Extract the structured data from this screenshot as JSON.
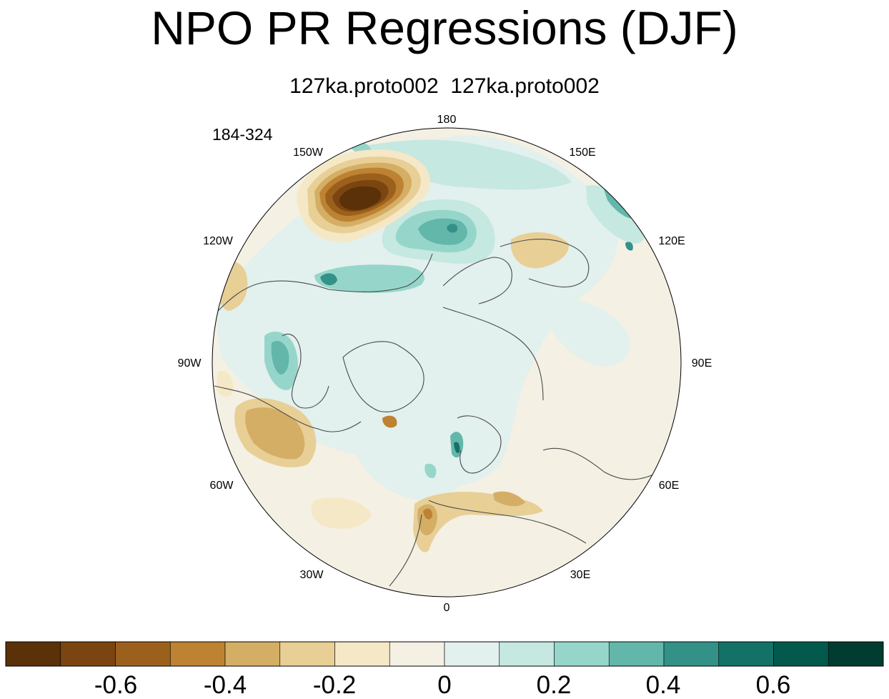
{
  "title": "NPO PR Regressions (DJF)",
  "subtitle": "127ka.proto002  127ka.proto002",
  "period": "184-324",
  "longitude_labels": {
    "lon_180": "180",
    "lon_150E": "150E",
    "lon_120E": "120E",
    "lon_90E": "90E",
    "lon_60E": "60E",
    "lon_30E": "30E",
    "lon_0": "0",
    "lon_30W": "30W",
    "lon_60W": "60W",
    "lon_90W": "90W",
    "lon_120W": "120W",
    "lon_150W": "150W"
  },
  "colorbar": {
    "levels": [
      "-0.7",
      "-0.6",
      "-0.5",
      "-0.4",
      "-0.3",
      "-0.2",
      "-0.1",
      "0",
      "0.1",
      "0.2",
      "0.3",
      "0.4",
      "0.5",
      "0.6",
      "0.7"
    ],
    "colors": [
      "#5a3108",
      "#7a4510",
      "#9b611c",
      "#bd8232",
      "#d5ae65",
      "#e8cf96",
      "#f5e8c6",
      "#f4f0e4",
      "#e2f0ee",
      "#c5e8e1",
      "#96d6ca",
      "#62b7aa",
      "#349188",
      "#137168",
      "#035a4c",
      "#003c30"
    ],
    "tick_labels": {
      "t_m06": "-0.6",
      "t_m04": "-0.4",
      "t_m02": "-0.2",
      "t_0": "0",
      "t_02": "0.2",
      "t_04": "0.4",
      "t_06": "0.6"
    }
  }
}
